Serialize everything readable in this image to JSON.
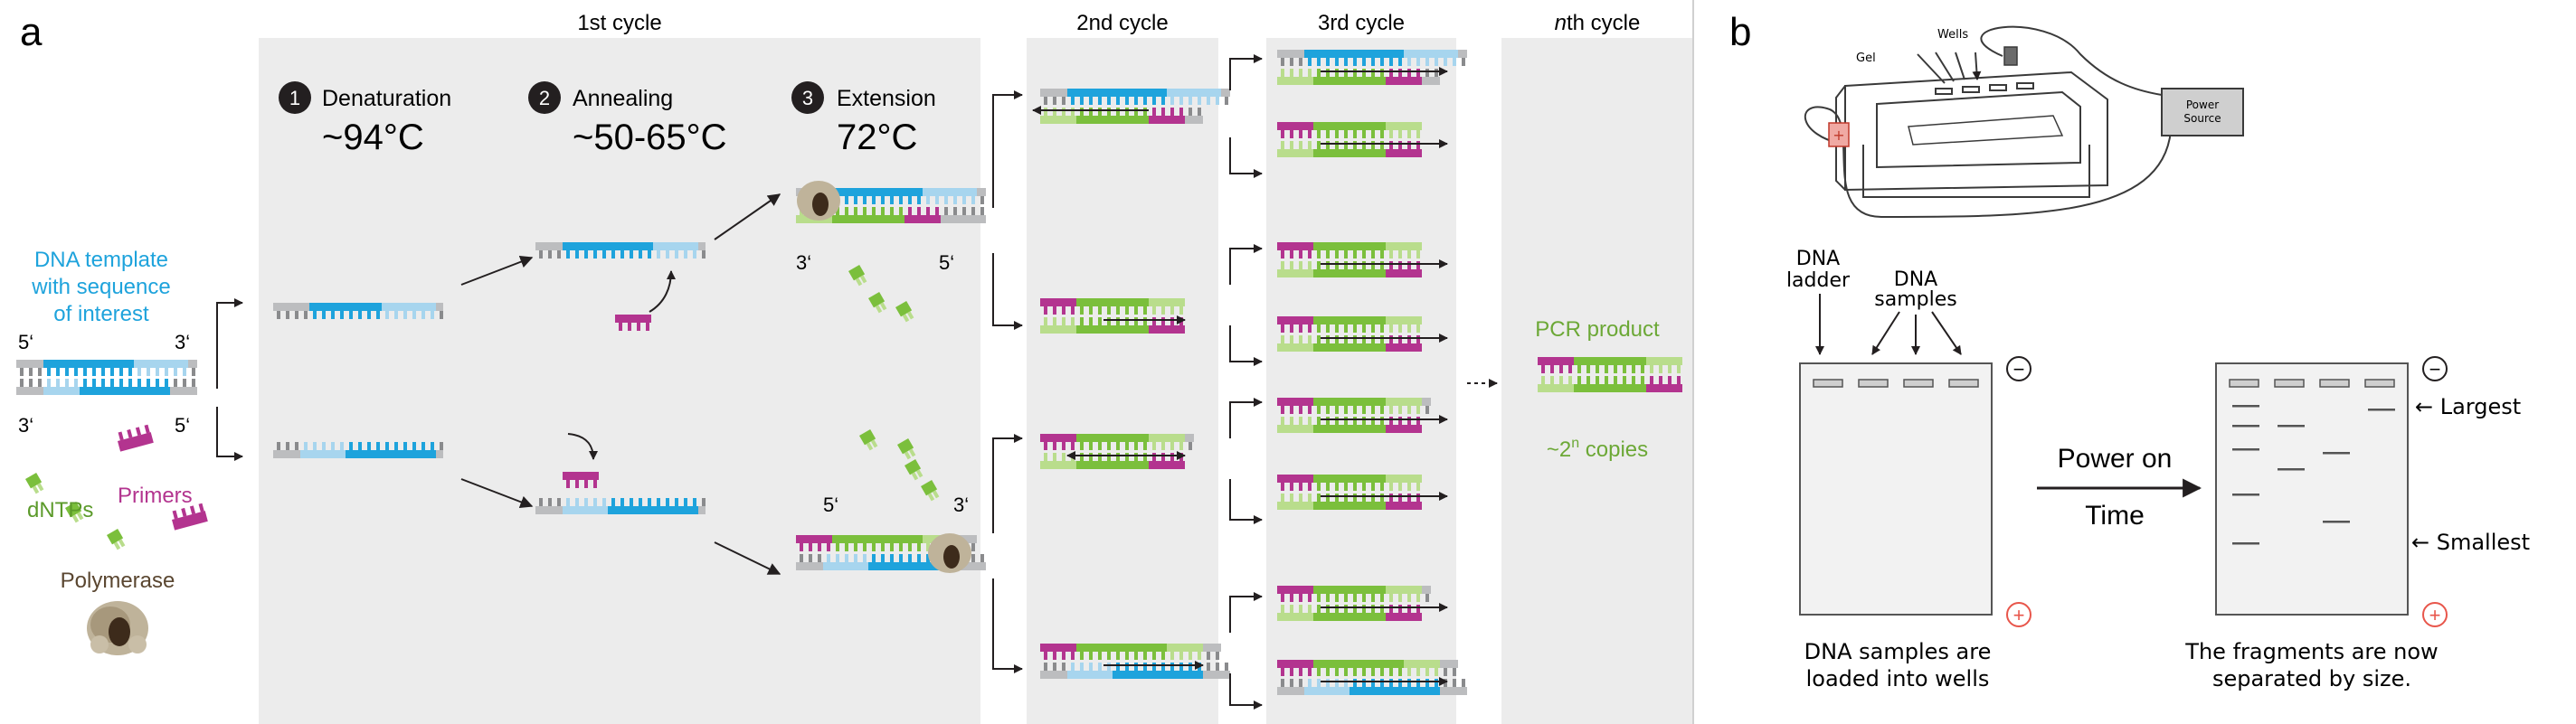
{
  "panel_a": {
    "letter": "a",
    "cycle_headers": {
      "first": "1st cycle",
      "second": "2nd cycle",
      "third": "3rd cycle",
      "nth_italic": "n",
      "nth_rest": "th cycle"
    },
    "steps": [
      {
        "number": "1",
        "name": "Denaturation",
        "temp": "~94°C"
      },
      {
        "number": "2",
        "name": "Annealing",
        "temp": "~50-65°C"
      },
      {
        "number": "3",
        "name": "Extension",
        "temp": "72°C"
      }
    ],
    "template_label": [
      "DNA template",
      "with sequence",
      "of interest"
    ],
    "end_5": "5‘",
    "end_3": "3‘",
    "dntps_label": "dNTPs",
    "primers_label": "Primers",
    "polymerase_label": "Polymerase",
    "pcr_product_label": "PCR product",
    "copies_prefix": "~2",
    "copies_sup": "n",
    "copies_suffix": " copies",
    "colors": {
      "template_blue": "#1ea3dc",
      "template_light": "#a7d5ee",
      "primer_magenta": "#b3348f",
      "new_green": "#7bbf3c",
      "new_light": "#b9dd8c",
      "backbone_gray": "#bcbdbf",
      "panel_bg": "#ececec",
      "polymerase": "#6b5640"
    }
  },
  "panel_b": {
    "letter": "b",
    "apparatus": {
      "gel": "Gel",
      "wells": "Wells",
      "power": [
        "Power",
        "Source"
      ],
      "plus": "+"
    },
    "ladder_label": [
      "DNA",
      "ladder"
    ],
    "samples_label": [
      "DNA",
      "samples"
    ],
    "minus": "−",
    "plus": "+",
    "power_on": "Power on",
    "time": "Time",
    "largest": "← Largest",
    "smallest": "← Smallest",
    "caption_left": [
      "DNA samples are",
      "loaded into wells"
    ],
    "caption_right": [
      "The fragments are now",
      "separated by size."
    ]
  }
}
